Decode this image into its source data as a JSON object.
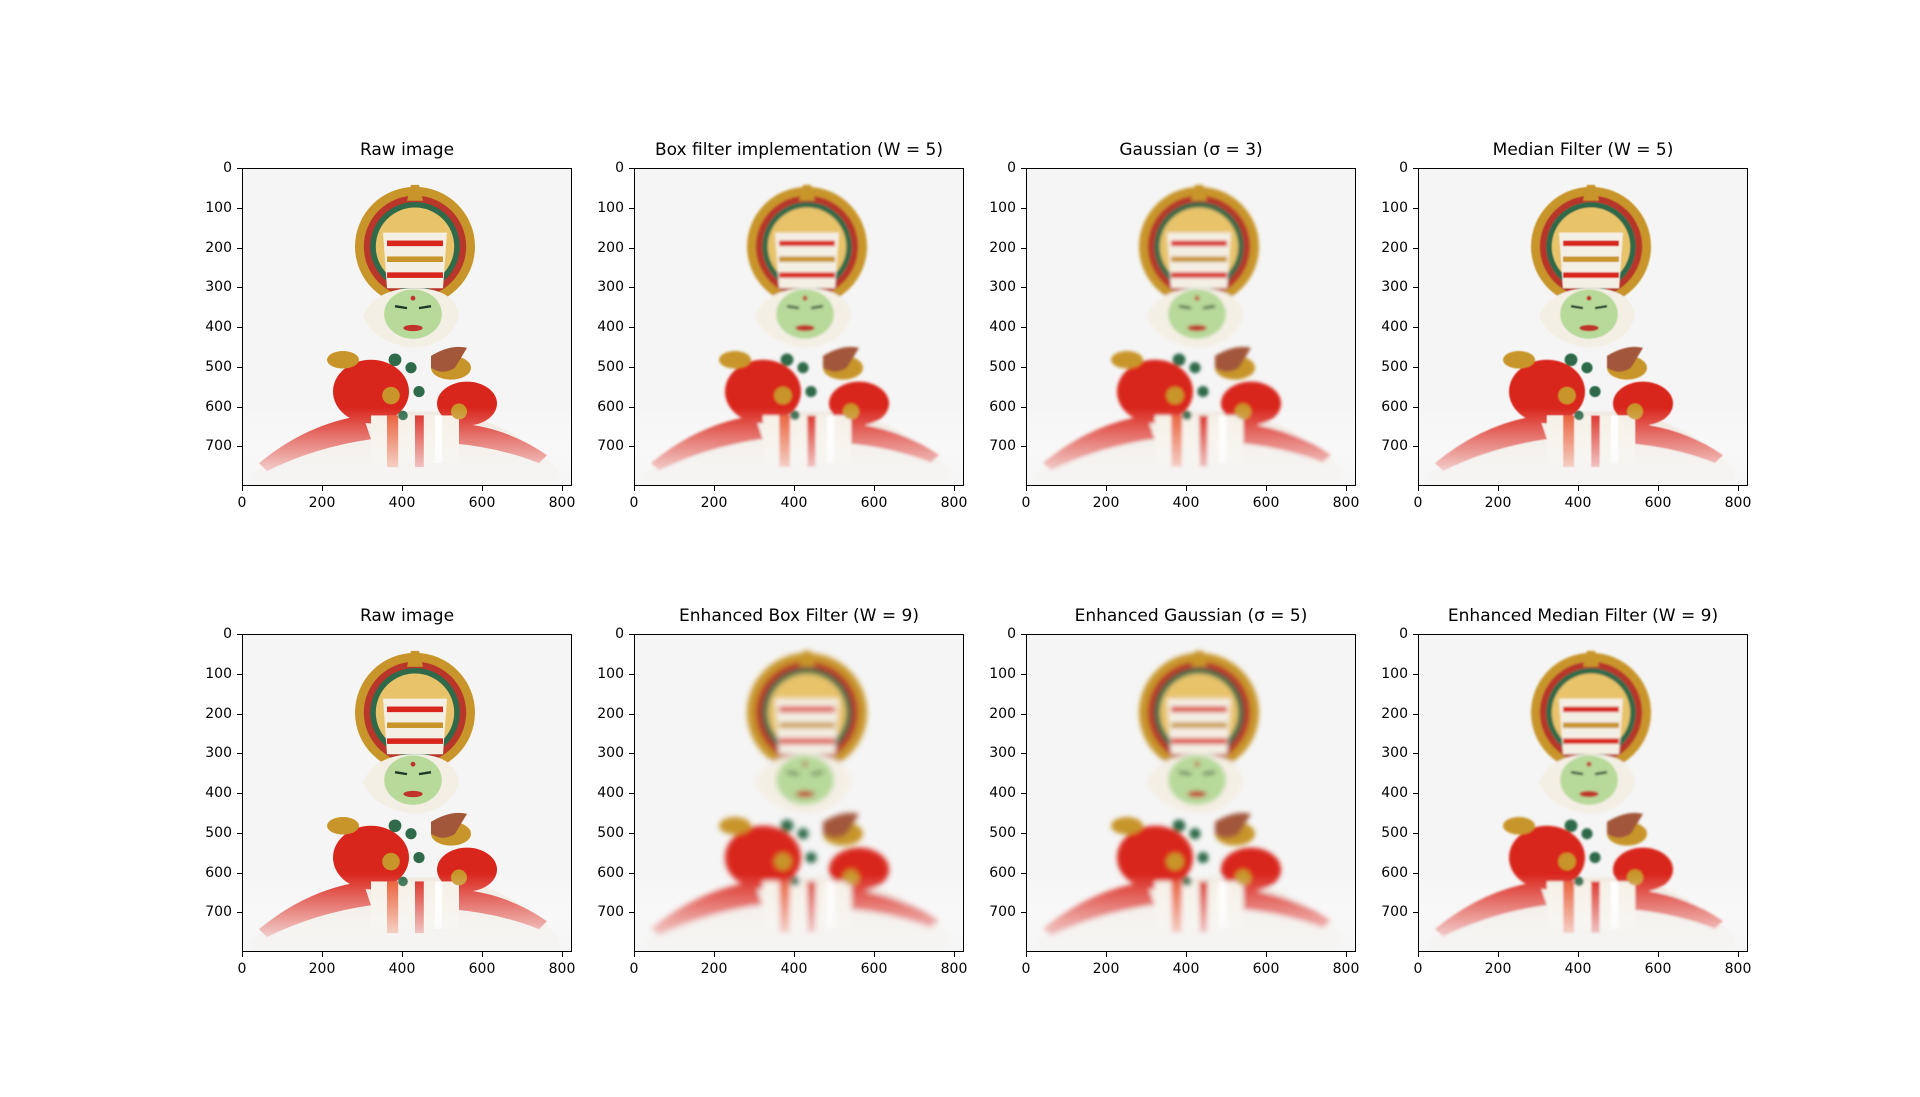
{
  "figure": {
    "panels": [
      {
        "title": "Raw image",
        "blur": 0
      },
      {
        "title": "Box filter implementation (W = 5)",
        "blur": 1.2
      },
      {
        "title": "Gaussian (σ = 3)",
        "blur": 1.4
      },
      {
        "title": "Median Filter (W = 5)",
        "blur": 0.5
      },
      {
        "title": "Raw image",
        "blur": 0
      },
      {
        "title": "Enhanced Box Filter (W = 9)",
        "blur": 2.3
      },
      {
        "title": "Enhanced Gaussian (σ = 5)",
        "blur": 2.0
      },
      {
        "title": "Enhanced Median Filter (W = 9)",
        "blur": 0.9
      }
    ],
    "y_ticks": [
      "0",
      "100",
      "200",
      "300",
      "400",
      "500",
      "600",
      "700"
    ],
    "x_ticks": [
      "0",
      "200",
      "400",
      "600",
      "800"
    ],
    "image_extent": {
      "width": 825,
      "height": 800
    },
    "subject": "kathakali-dancer",
    "colors": {
      "background": "#f5f5f5",
      "red": "#d9261c",
      "gold": "#c8952a",
      "green": "#2f6b4a",
      "face": "#b7d99a"
    }
  }
}
